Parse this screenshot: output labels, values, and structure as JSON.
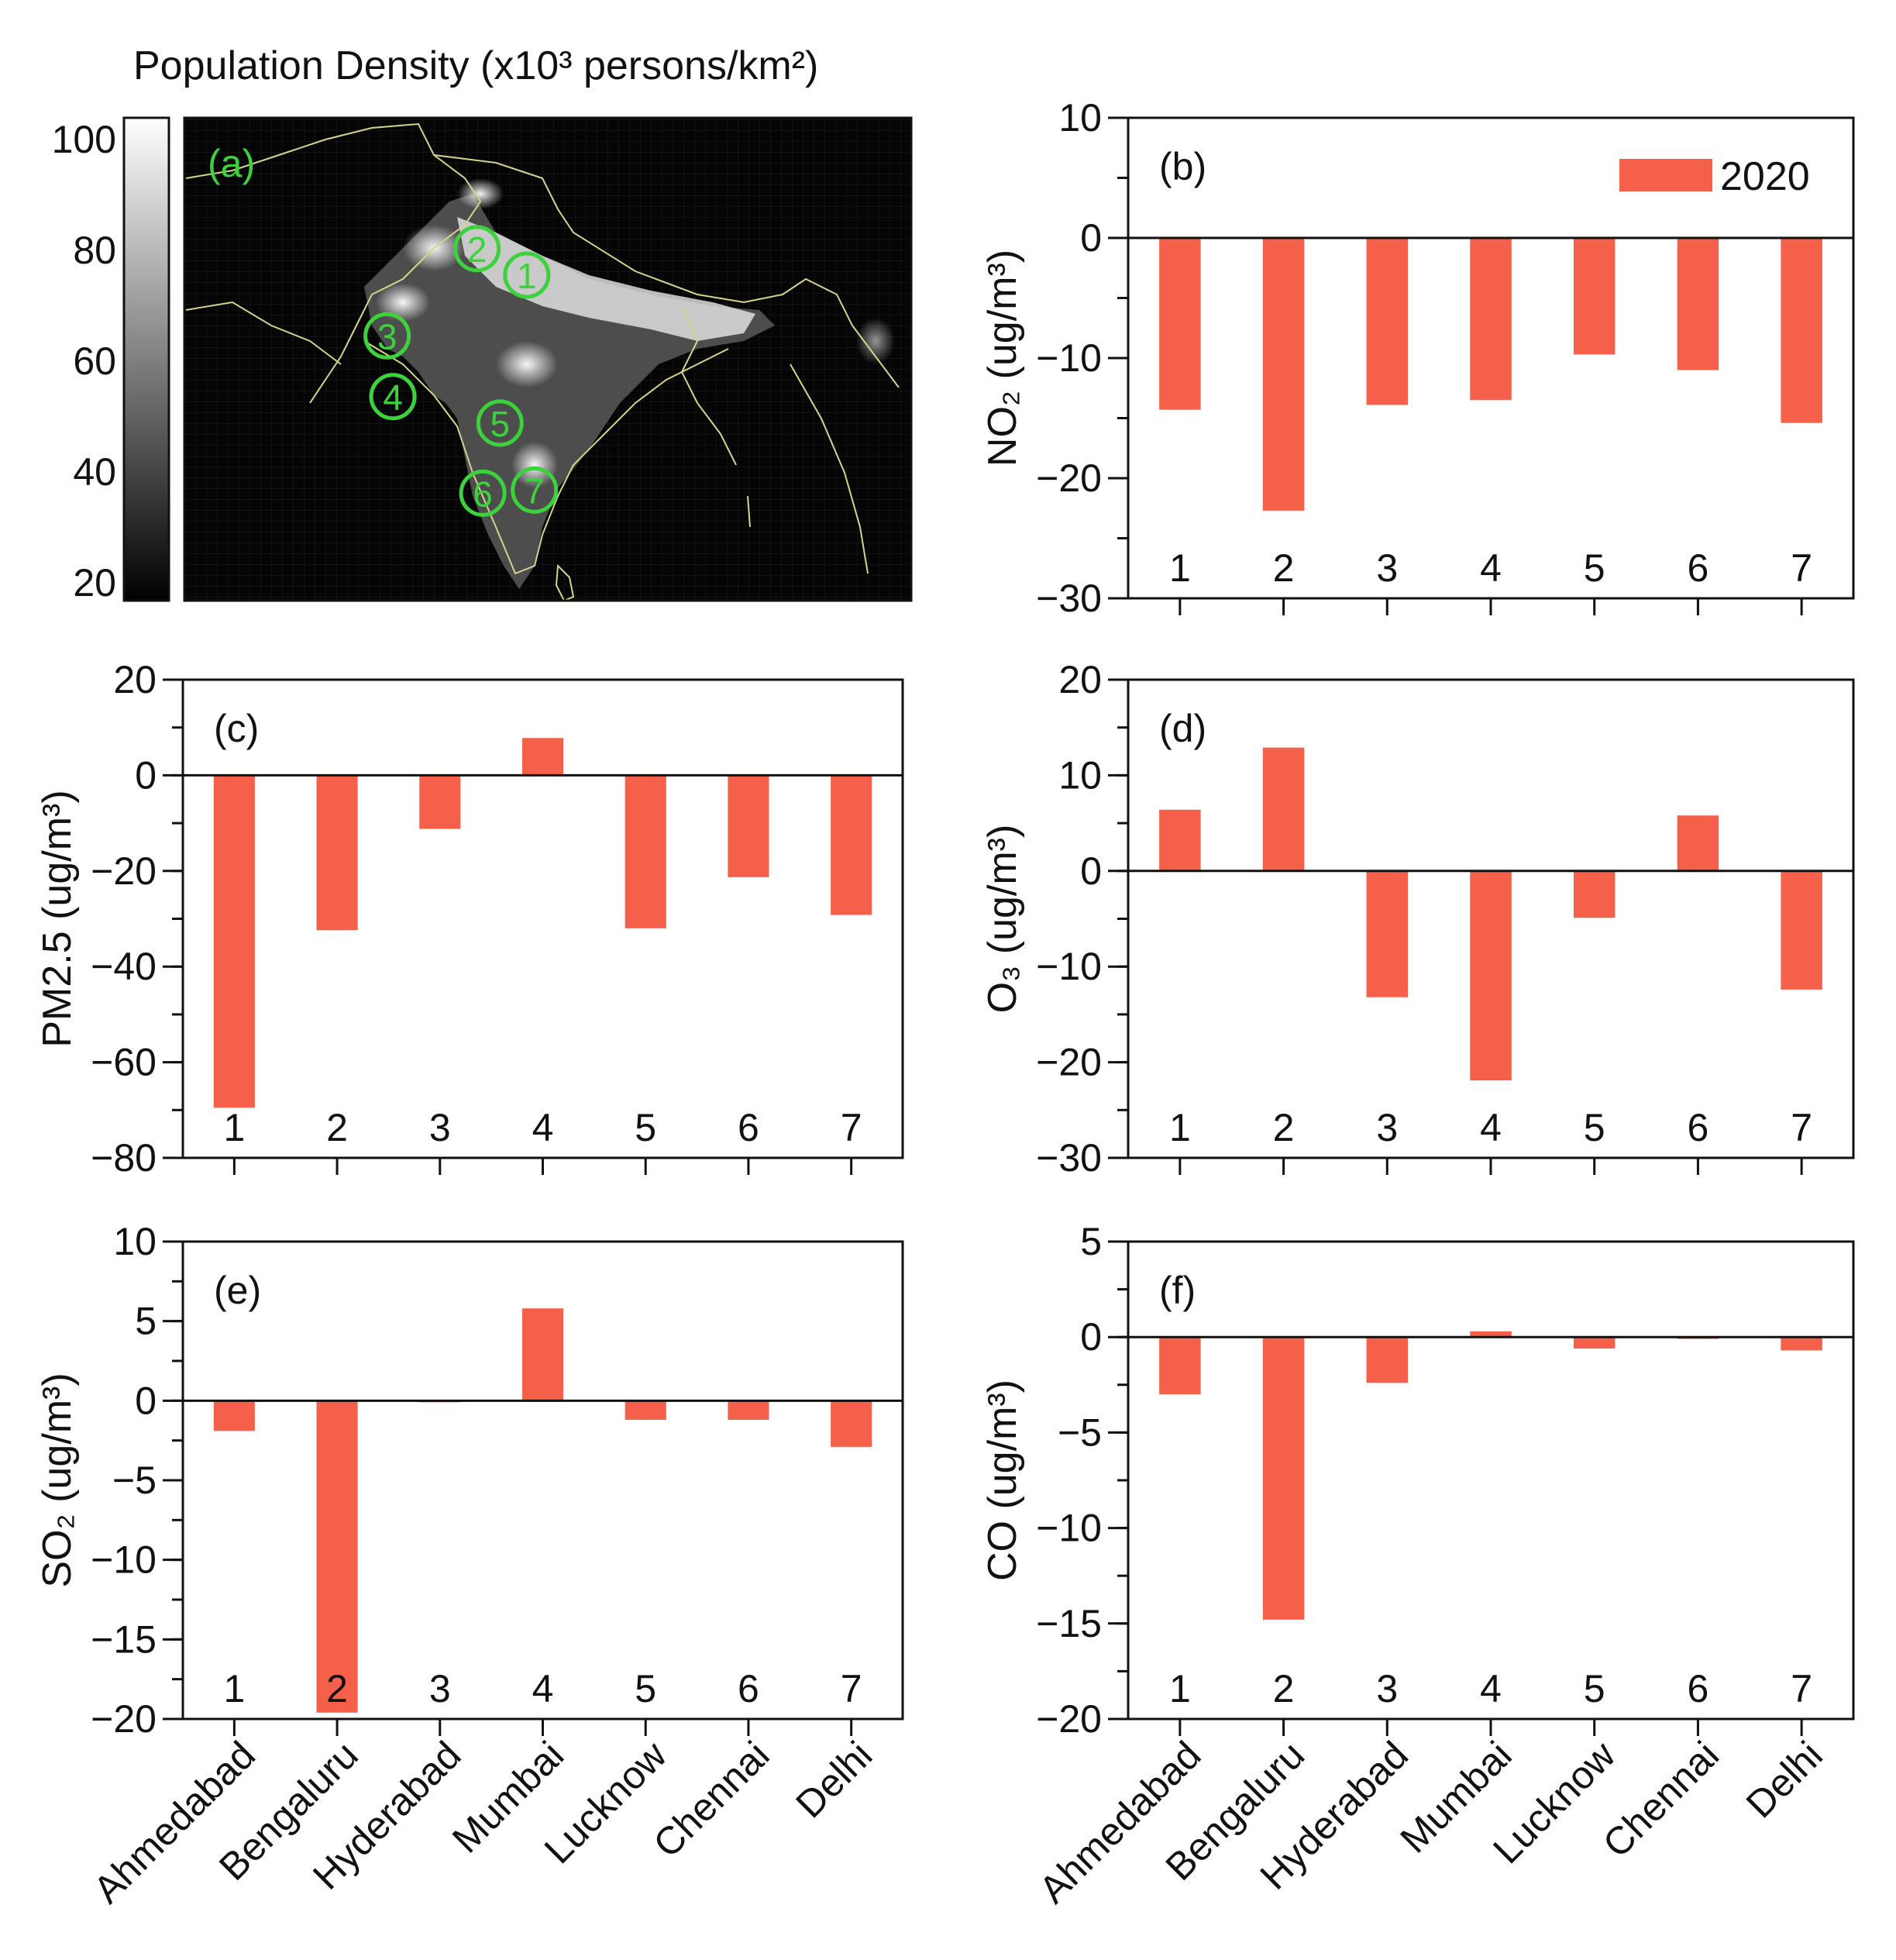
{
  "map_panel": {
    "title": "Population Density (x10³ persons/km²)",
    "tag": "(a)",
    "colorbar_ticks": [
      "100",
      "80",
      "60",
      "40",
      "20"
    ],
    "colorbar_range": [
      20,
      100
    ],
    "site_markers": [
      {
        "label": "1",
        "lon": 79.9,
        "lat": 26.9
      },
      {
        "label": "2",
        "lon": 77.3,
        "lat": 28.6
      },
      {
        "label": "3",
        "lon": 72.6,
        "lat": 23.0
      },
      {
        "label": "4",
        "lon": 72.9,
        "lat": 19.1
      },
      {
        "label": "5",
        "lon": 78.5,
        "lat": 17.4
      },
      {
        "label": "6",
        "lon": 77.6,
        "lat": 12.9
      },
      {
        "label": "7",
        "lon": 80.3,
        "lat": 13.1
      }
    ],
    "marker_color": "#3cd23c"
  },
  "legend": {
    "label": "2020",
    "color": "#f46049"
  },
  "colors": {
    "bar": "#f46049",
    "map_bg": "#050505",
    "border": "#d4d48a"
  },
  "chart_data": [
    {
      "id": "b",
      "tag": "(b)",
      "type": "bar",
      "ylabel": "NO₂ (ug/m³)",
      "ylim": [
        -30,
        10
      ],
      "yticks": [
        10,
        0,
        -10,
        -20,
        -30
      ],
      "categories": [
        "1",
        "2",
        "3",
        "4",
        "5",
        "6",
        "7"
      ],
      "xticklabels": [
        "Ahmedabad",
        "Bengaluru",
        "Hyderabad",
        "Mumbai",
        "Lucknow",
        "Chennai",
        "Delhi"
      ],
      "series": [
        {
          "name": "2020",
          "values": [
            -14.3,
            -22.7,
            -13.9,
            -13.5,
            -9.7,
            -11.0,
            -15.4
          ]
        }
      ]
    },
    {
      "id": "c",
      "tag": "(c)",
      "type": "bar",
      "ylabel": "PM2.5 (ug/m³)",
      "ylim": [
        -80,
        20
      ],
      "yticks": [
        20,
        0,
        -20,
        -40,
        -60,
        -80
      ],
      "categories": [
        "1",
        "2",
        "3",
        "4",
        "5",
        "6",
        "7"
      ],
      "xticklabels": [
        "Ahmedabad",
        "Bengaluru",
        "Hyderabad",
        "Mumbai",
        "Lucknow",
        "Chennai",
        "Delhi"
      ],
      "series": [
        {
          "name": "2020",
          "values": [
            -69.5,
            -32.4,
            -11.2,
            7.8,
            -32.0,
            -21.3,
            -29.2
          ]
        }
      ]
    },
    {
      "id": "d",
      "tag": "(d)",
      "type": "bar",
      "ylabel": "O₃ (ug/m³)",
      "ylim": [
        -30,
        20
      ],
      "yticks": [
        20,
        10,
        0,
        -10,
        -20,
        -30
      ],
      "categories": [
        "1",
        "2",
        "3",
        "4",
        "5",
        "6",
        "7"
      ],
      "xticklabels": [
        "Ahmedabad",
        "Bengaluru",
        "Hyderabad",
        "Mumbai",
        "Lucknow",
        "Chennai",
        "Delhi"
      ],
      "series": [
        {
          "name": "2020",
          "values": [
            6.4,
            12.9,
            -13.2,
            -21.9,
            -4.9,
            5.8,
            -12.4
          ]
        }
      ]
    },
    {
      "id": "e",
      "tag": "(e)",
      "type": "bar",
      "ylabel": "SO₂ (ug/m³)",
      "ylim": [
        -20,
        10
      ],
      "yticks": [
        10,
        5,
        0,
        -5,
        -10,
        -15,
        -20
      ],
      "categories": [
        "1",
        "2",
        "3",
        "4",
        "5",
        "6",
        "7"
      ],
      "xticklabels": [
        "Ahmedabad",
        "Bengaluru",
        "Hyderabad",
        "Mumbai",
        "Lucknow",
        "Chennai",
        "Delhi"
      ],
      "series": [
        {
          "name": "2020",
          "values": [
            -1.9,
            -19.6,
            -0.1,
            5.8,
            -1.2,
            -1.2,
            -2.9
          ]
        }
      ]
    },
    {
      "id": "f",
      "tag": "(f)",
      "type": "bar",
      "ylabel": "CO (ug/m³)",
      "ylim": [
        -20,
        5
      ],
      "yticks": [
        5,
        0,
        -5,
        -10,
        -15,
        -20
      ],
      "categories": [
        "1",
        "2",
        "3",
        "4",
        "5",
        "6",
        "7"
      ],
      "xticklabels": [
        "Ahmedabad",
        "Bengaluru",
        "Hyderabad",
        "Mumbai",
        "Lucknow",
        "Chennai",
        "Delhi"
      ],
      "series": [
        {
          "name": "2020",
          "values": [
            -3.0,
            -14.8,
            -2.4,
            0.3,
            -0.6,
            -0.1,
            -0.7
          ]
        }
      ]
    }
  ]
}
